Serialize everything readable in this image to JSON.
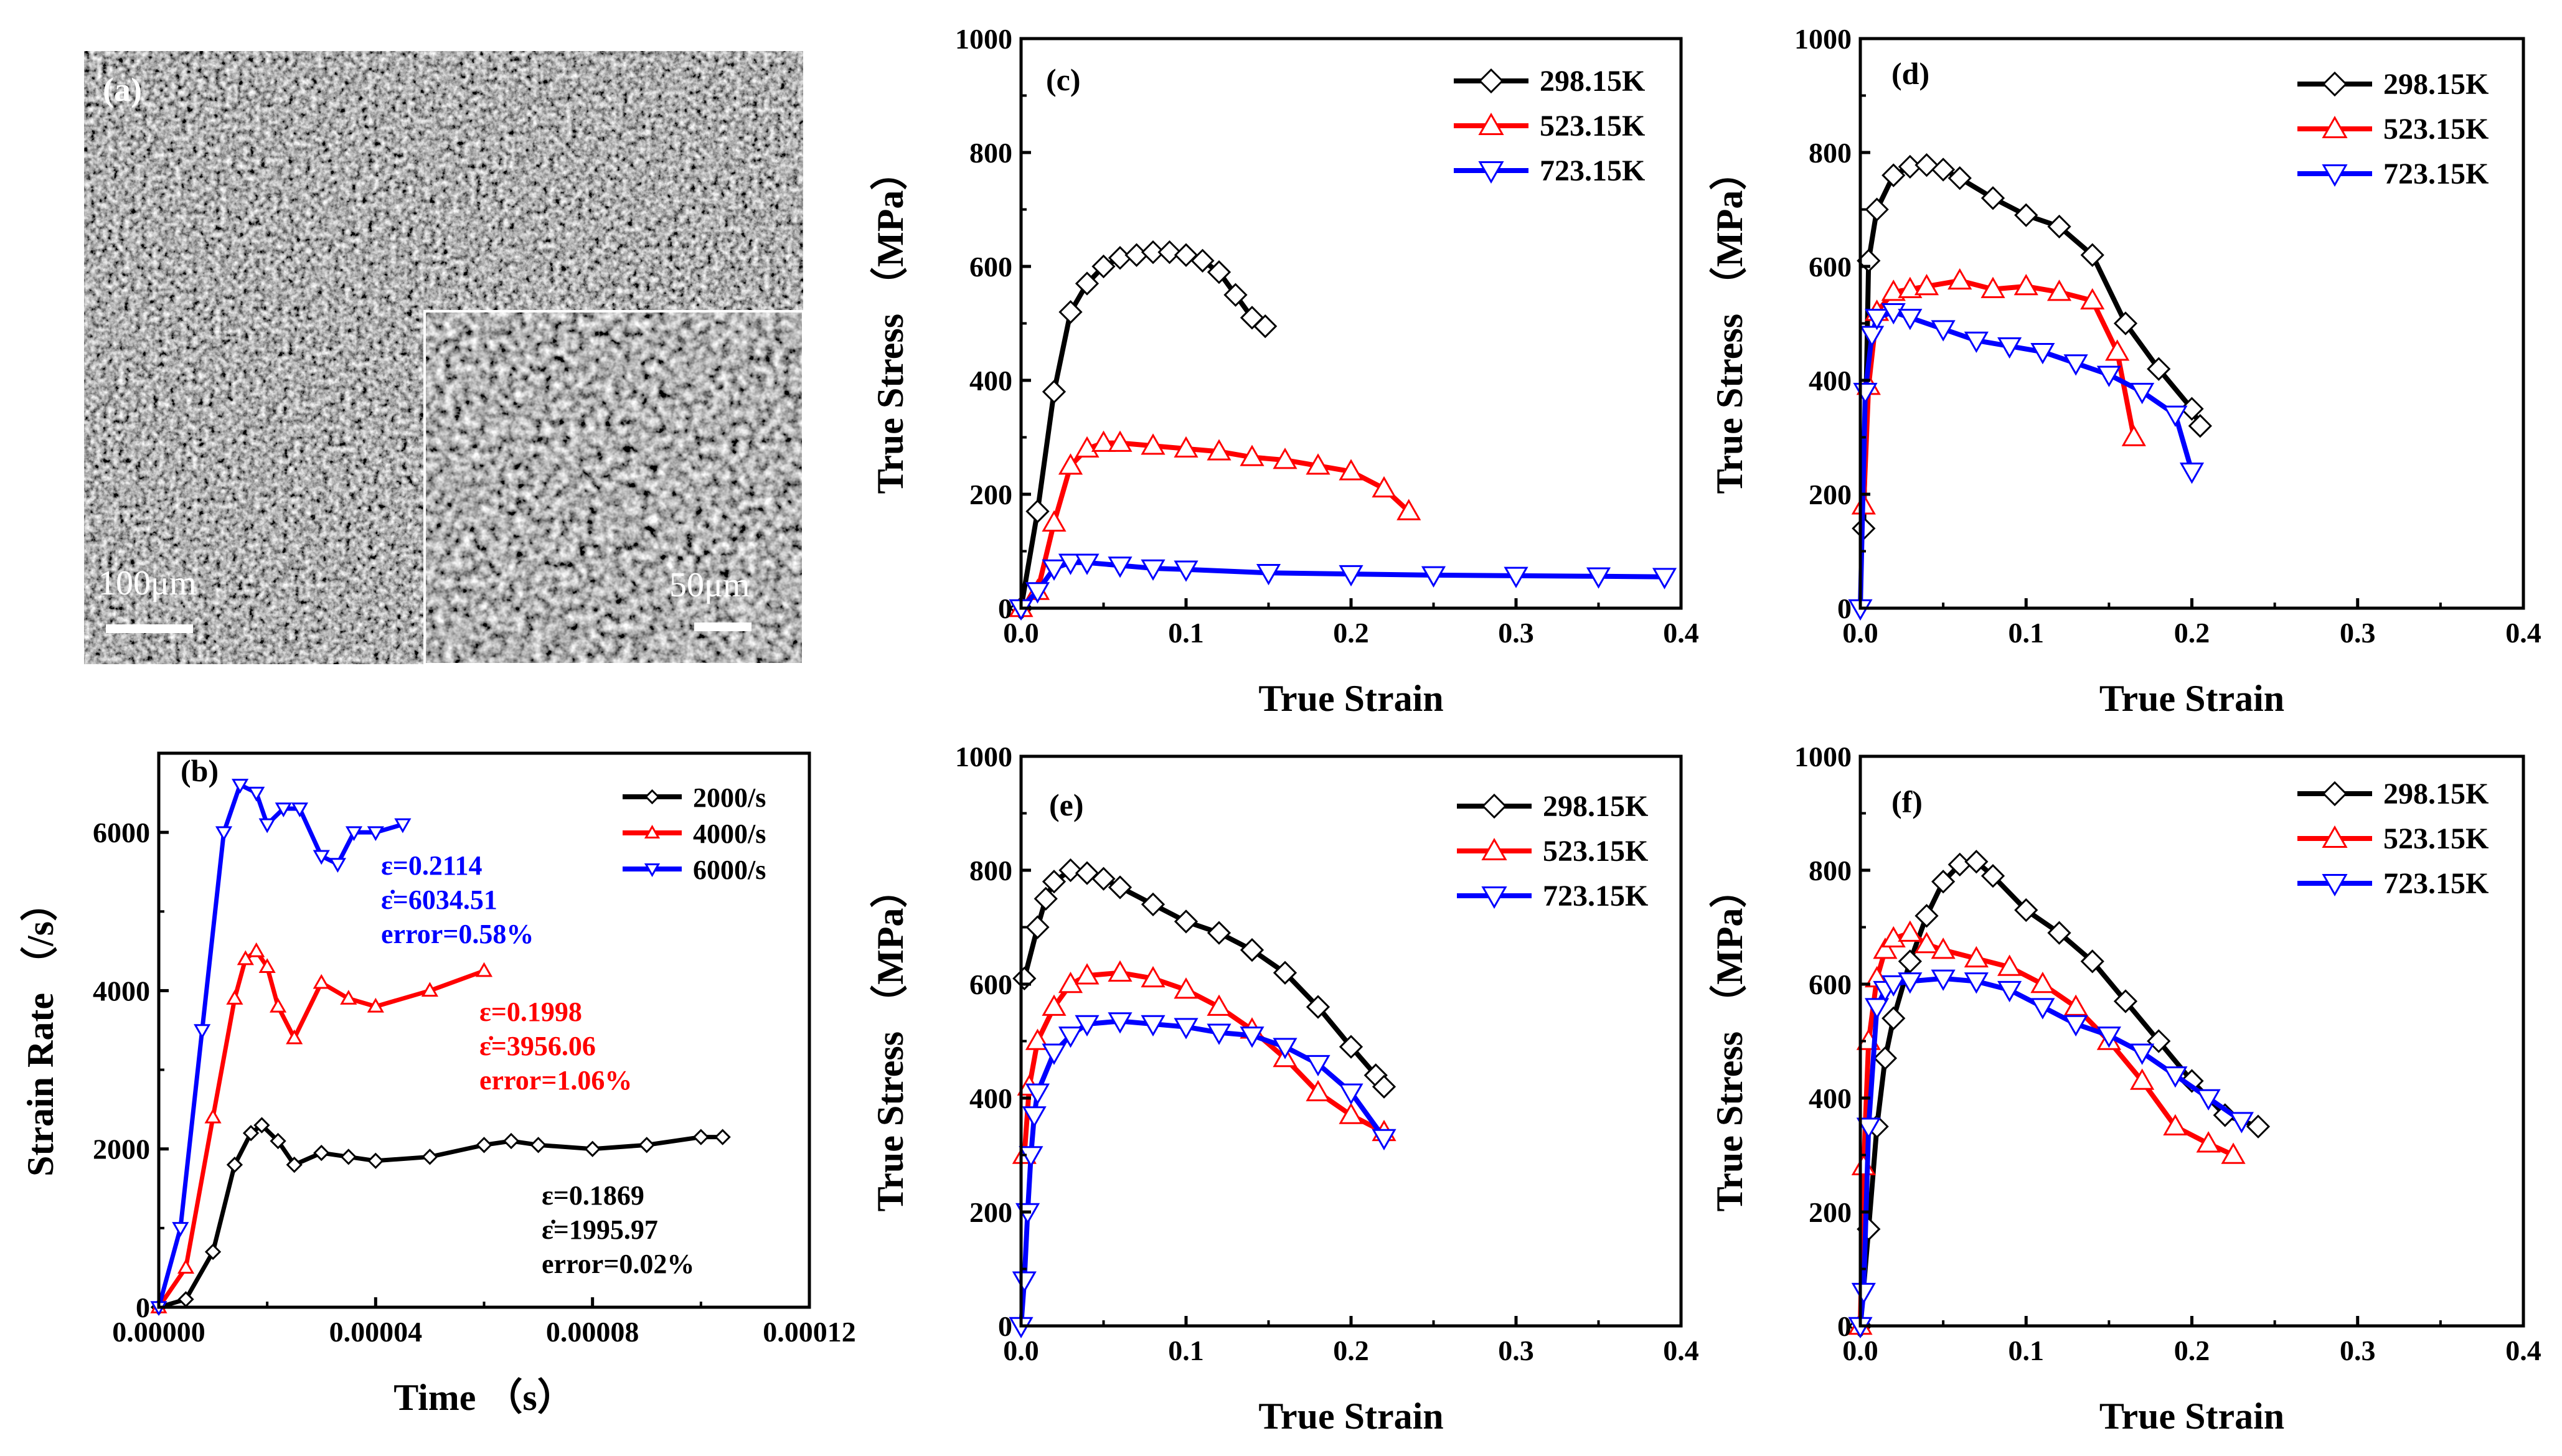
{
  "colors": {
    "black": "#000000",
    "red": "#ff0000",
    "blue": "#0000ff"
  },
  "sem": {
    "label": "(a)",
    "scale_main": "100μm",
    "scale_inset": "50μm"
  },
  "chart_data": [
    {
      "id": "b",
      "type": "line",
      "panel_label": "(b)",
      "xlabel": "Time （s）",
      "ylabel": "Strain Rate （/s）",
      "xlim": [
        0,
        0.00012
      ],
      "ylim": [
        0,
        7000
      ],
      "xticks": [
        0,
        4e-05,
        8e-05,
        0.00012
      ],
      "xtick_labels": [
        "0.00000",
        "0.00004",
        "0.00008",
        "0.00012"
      ],
      "yticks": [
        0,
        2000,
        4000,
        6000
      ],
      "ytick_labels": [
        "0",
        "2000",
        "4000",
        "6000"
      ],
      "series": [
        {
          "name": "2000/s",
          "color": "#000000",
          "marker": "diamond",
          "x": [
            0,
            5e-06,
            1e-05,
            1.4e-05,
            1.7e-05,
            1.9e-05,
            2.2e-05,
            2.5e-05,
            3e-05,
            3.5e-05,
            4e-05,
            5e-05,
            6e-05,
            6.5e-05,
            7e-05,
            8e-05,
            9e-05,
            0.0001,
            0.000104
          ],
          "y": [
            0,
            100,
            700,
            1800,
            2200,
            2300,
            2100,
            1800,
            1950,
            1900,
            1850,
            1900,
            2050,
            2100,
            2050,
            2000,
            2050,
            2150,
            2150
          ]
        },
        {
          "name": "4000/s",
          "color": "#ff0000",
          "marker": "triangle-up",
          "x": [
            0,
            5e-06,
            1e-05,
            1.4e-05,
            1.6e-05,
            1.8e-05,
            2e-05,
            2.2e-05,
            2.5e-05,
            3e-05,
            3.5e-05,
            4e-05,
            5e-05,
            6e-05
          ],
          "y": [
            0,
            500,
            2400,
            3900,
            4400,
            4500,
            4300,
            3800,
            3400,
            4100,
            3900,
            3800,
            4000,
            4250
          ]
        },
        {
          "name": "6000/s",
          "color": "#0000ff",
          "marker": "triangle-down",
          "x": [
            0,
            4e-06,
            8e-06,
            1.2e-05,
            1.5e-05,
            1.8e-05,
            2e-05,
            2.3e-05,
            2.6e-05,
            3e-05,
            3.3e-05,
            3.6e-05,
            4e-05,
            4.5e-05
          ],
          "y": [
            0,
            1000,
            3500,
            6000,
            6600,
            6500,
            6100,
            6300,
            6300,
            5700,
            5600,
            6000,
            6000,
            6100
          ]
        }
      ],
      "legend_loc": "top-right",
      "annotations": [
        {
          "color": "#0000ff",
          "lines": [
            "ε=0.2114",
            "ε̇=6034.51",
            "error=0.58%"
          ]
        },
        {
          "color": "#ff0000",
          "lines": [
            "ε=0.1998",
            "ε̇=3956.06",
            "error=1.06%"
          ]
        },
        {
          "color": "#000000",
          "lines": [
            "ε=0.1869",
            "ε̇=1995.97",
            "error=0.02%"
          ]
        }
      ]
    },
    {
      "id": "c",
      "type": "line",
      "panel_label": "(c)",
      "xlabel": "True Strain",
      "ylabel": "True Stress （MPa）",
      "xlim": [
        0,
        0.4
      ],
      "ylim": [
        0,
        1000
      ],
      "xticks": [
        0,
        0.1,
        0.2,
        0.3,
        0.4
      ],
      "xtick_labels": [
        "0.0",
        "0.1",
        "0.2",
        "0.3",
        "0.4"
      ],
      "yticks": [
        0,
        200,
        400,
        600,
        800,
        1000
      ],
      "ytick_labels": [
        "0",
        "200",
        "400",
        "600",
        "800",
        "1000"
      ],
      "legend_loc": "top-right",
      "series": [
        {
          "name": "298.15K",
          "color": "#000000",
          "marker": "diamond",
          "x": [
            0,
            0.01,
            0.02,
            0.03,
            0.04,
            0.05,
            0.06,
            0.07,
            0.08,
            0.09,
            0.1,
            0.11,
            0.12,
            0.13,
            0.14,
            0.148
          ],
          "y": [
            0,
            170,
            380,
            520,
            570,
            600,
            615,
            620,
            625,
            625,
            620,
            610,
            590,
            550,
            510,
            495
          ]
        },
        {
          "name": "523.15K",
          "color": "#ff0000",
          "marker": "triangle-up",
          "x": [
            0,
            0.01,
            0.02,
            0.03,
            0.04,
            0.05,
            0.06,
            0.08,
            0.1,
            0.12,
            0.14,
            0.16,
            0.18,
            0.2,
            0.22,
            0.235
          ],
          "y": [
            0,
            30,
            150,
            250,
            280,
            290,
            290,
            285,
            280,
            275,
            265,
            260,
            250,
            240,
            210,
            170
          ]
        },
        {
          "name": "723.15K",
          "color": "#0000ff",
          "marker": "triangle-down",
          "x": [
            0,
            0.01,
            0.02,
            0.03,
            0.04,
            0.06,
            0.08,
            0.1,
            0.15,
            0.2,
            0.25,
            0.3,
            0.35,
            0.39
          ],
          "y": [
            0,
            30,
            70,
            80,
            80,
            75,
            70,
            68,
            62,
            60,
            58,
            57,
            56,
            55
          ]
        }
      ]
    },
    {
      "id": "d",
      "type": "line",
      "panel_label": "(d)",
      "xlabel": "True Strain",
      "ylabel": "True Stress （MPa）",
      "xlim": [
        0,
        0.4
      ],
      "ylim": [
        0,
        1000
      ],
      "xticks": [
        0,
        0.1,
        0.2,
        0.3,
        0.4
      ],
      "xtick_labels": [
        "0.0",
        "0.1",
        "0.2",
        "0.3",
        "0.4"
      ],
      "yticks": [
        0,
        200,
        400,
        600,
        800,
        1000
      ],
      "ytick_labels": [
        "0",
        "200",
        "400",
        "600",
        "800",
        "1000"
      ],
      "legend_loc": "top-right",
      "series": [
        {
          "name": "298.15K",
          "color": "#000000",
          "marker": "diamond",
          "x": [
            0.002,
            0.005,
            0.01,
            0.02,
            0.03,
            0.04,
            0.05,
            0.06,
            0.08,
            0.1,
            0.12,
            0.14,
            0.16,
            0.18,
            0.2,
            0.205
          ],
          "y": [
            140,
            610,
            700,
            760,
            775,
            778,
            770,
            755,
            720,
            690,
            670,
            620,
            500,
            420,
            350,
            320
          ]
        },
        {
          "name": "523.15K",
          "color": "#ff0000",
          "marker": "triangle-up",
          "x": [
            0.002,
            0.005,
            0.01,
            0.02,
            0.03,
            0.04,
            0.06,
            0.08,
            0.1,
            0.12,
            0.14,
            0.155,
            0.165
          ],
          "y": [
            180,
            390,
            520,
            555,
            560,
            565,
            575,
            560,
            565,
            555,
            540,
            450,
            300
          ]
        },
        {
          "name": "723.15K",
          "color": "#0000ff",
          "marker": "triangle-down",
          "x": [
            0,
            0.003,
            0.007,
            0.01,
            0.02,
            0.03,
            0.05,
            0.07,
            0.09,
            0.11,
            0.13,
            0.15,
            0.17,
            0.19,
            0.2
          ],
          "y": [
            0,
            380,
            480,
            510,
            520,
            510,
            490,
            470,
            460,
            450,
            430,
            410,
            380,
            340,
            240
          ]
        }
      ]
    },
    {
      "id": "e",
      "type": "line",
      "panel_label": "(e)",
      "xlabel": "True Strain",
      "ylabel": "True Stress （MPa）",
      "xlim": [
        0,
        0.4
      ],
      "ylim": [
        0,
        1000
      ],
      "xticks": [
        0,
        0.1,
        0.2,
        0.3,
        0.4
      ],
      "xtick_labels": [
        "0.0",
        "0.1",
        "0.2",
        "0.3",
        "0.4"
      ],
      "yticks": [
        0,
        200,
        400,
        600,
        800,
        1000
      ],
      "ytick_labels": [
        "0",
        "200",
        "400",
        "600",
        "800",
        "1000"
      ],
      "legend_loc": "top-right",
      "series": [
        {
          "name": "298.15K",
          "color": "#000000",
          "marker": "diamond",
          "x": [
            0.002,
            0.01,
            0.015,
            0.02,
            0.03,
            0.04,
            0.05,
            0.06,
            0.08,
            0.1,
            0.12,
            0.14,
            0.16,
            0.18,
            0.2,
            0.215,
            0.22
          ],
          "y": [
            610,
            700,
            750,
            780,
            800,
            795,
            785,
            770,
            740,
            710,
            690,
            660,
            620,
            560,
            490,
            440,
            420
          ]
        },
        {
          "name": "523.15K",
          "color": "#ff0000",
          "marker": "triangle-up",
          "x": [
            0.002,
            0.005,
            0.01,
            0.02,
            0.03,
            0.04,
            0.06,
            0.08,
            0.1,
            0.12,
            0.14,
            0.16,
            0.18,
            0.2,
            0.22
          ],
          "y": [
            300,
            420,
            500,
            560,
            600,
            615,
            620,
            610,
            590,
            560,
            520,
            470,
            410,
            370,
            340
          ]
        },
        {
          "name": "723.15K",
          "color": "#0000ff",
          "marker": "triangle-down",
          "x": [
            0,
            0.002,
            0.004,
            0.006,
            0.008,
            0.01,
            0.02,
            0.03,
            0.04,
            0.06,
            0.08,
            0.1,
            0.12,
            0.14,
            0.16,
            0.18,
            0.2,
            0.22
          ],
          "y": [
            0,
            80,
            200,
            300,
            370,
            410,
            480,
            510,
            530,
            535,
            530,
            525,
            515,
            510,
            490,
            460,
            410,
            330
          ]
        }
      ]
    },
    {
      "id": "f",
      "type": "line",
      "panel_label": "(f)",
      "xlabel": "True Strain",
      "ylabel": "True Stress （MPa）",
      "xlim": [
        0,
        0.4
      ],
      "ylim": [
        0,
        1000
      ],
      "xticks": [
        0,
        0.1,
        0.2,
        0.3,
        0.4
      ],
      "xtick_labels": [
        "0.0",
        "0.1",
        "0.2",
        "0.3",
        "0.4"
      ],
      "yticks": [
        0,
        200,
        400,
        600,
        800,
        1000
      ],
      "ytick_labels": [
        "0",
        "200",
        "400",
        "600",
        "800",
        "1000"
      ],
      "legend_loc": "top-right",
      "series": [
        {
          "name": "298.15K",
          "color": "#000000",
          "marker": "diamond",
          "x": [
            0,
            0.005,
            0.01,
            0.015,
            0.02,
            0.03,
            0.04,
            0.05,
            0.06,
            0.07,
            0.08,
            0.1,
            0.12,
            0.14,
            0.16,
            0.18,
            0.2,
            0.22,
            0.24
          ],
          "y": [
            0,
            170,
            350,
            470,
            540,
            640,
            720,
            780,
            810,
            815,
            790,
            730,
            690,
            640,
            570,
            500,
            430,
            370,
            350
          ]
        },
        {
          "name": "523.15K",
          "color": "#ff0000",
          "marker": "triangle-up",
          "x": [
            0,
            0.002,
            0.005,
            0.01,
            0.015,
            0.02,
            0.03,
            0.04,
            0.05,
            0.07,
            0.09,
            0.11,
            0.13,
            0.15,
            0.17,
            0.19,
            0.21,
            0.225
          ],
          "y": [
            0,
            280,
            500,
            610,
            660,
            680,
            690,
            670,
            660,
            645,
            630,
            600,
            560,
            500,
            430,
            350,
            320,
            300
          ]
        },
        {
          "name": "723.15K",
          "color": "#0000ff",
          "marker": "triangle-down",
          "x": [
            0,
            0.002,
            0.005,
            0.01,
            0.015,
            0.02,
            0.03,
            0.05,
            0.07,
            0.09,
            0.11,
            0.13,
            0.15,
            0.17,
            0.19,
            0.21,
            0.23
          ],
          "y": [
            0,
            60,
            350,
            560,
            590,
            600,
            605,
            610,
            605,
            590,
            560,
            530,
            510,
            480,
            440,
            400,
            360
          ]
        }
      ]
    }
  ]
}
